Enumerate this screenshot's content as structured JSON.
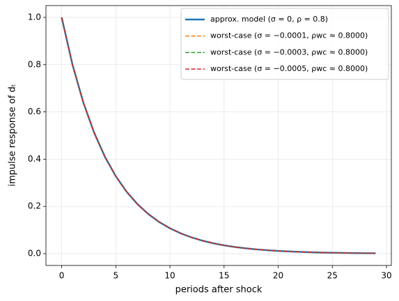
{
  "chart_data": {
    "type": "line",
    "x_label": "periods after shock",
    "y_label": "impulse response of dₜ",
    "x": [
      0,
      1,
      2,
      3,
      4,
      5,
      6,
      7,
      8,
      9,
      10,
      11,
      12,
      13,
      14,
      15,
      16,
      17,
      18,
      19,
      20,
      21,
      22,
      23,
      24,
      25,
      26,
      27,
      28,
      29
    ],
    "series": [
      {
        "name": "approx. model (σ = 0, ρ = 0.8)",
        "color": "#1f77b4",
        "linestyle": "solid",
        "values": [
          1,
          0.8,
          0.64,
          0.512,
          0.4096,
          0.3277,
          0.2621,
          0.2097,
          0.1678,
          0.1342,
          0.1074,
          0.0859,
          0.0687,
          0.055,
          0.044,
          0.0352,
          0.0281,
          0.0225,
          0.018,
          0.0144,
          0.0115,
          0.0092,
          0.0074,
          0.0059,
          0.0047,
          0.0038,
          0.003,
          0.0024,
          0.0019,
          0.0015
        ]
      },
      {
        "name": "worst-case (σ = −0.0001, ρwc ≈ 0.8000)",
        "color": "#ff7f0e",
        "linestyle": "dashed",
        "values": [
          1,
          0.8,
          0.64,
          0.512,
          0.4096,
          0.3277,
          0.2621,
          0.2097,
          0.1678,
          0.1342,
          0.1074,
          0.0859,
          0.0687,
          0.055,
          0.044,
          0.0352,
          0.0281,
          0.0225,
          0.018,
          0.0144,
          0.0115,
          0.0092,
          0.0074,
          0.0059,
          0.0047,
          0.0038,
          0.003,
          0.0024,
          0.0019,
          0.0015
        ]
      },
      {
        "name": "worst-case (σ = −0.0003, ρwc ≈ 0.8000)",
        "color": "#2ca02c",
        "linestyle": "dashed",
        "values": [
          1,
          0.8,
          0.64,
          0.512,
          0.4096,
          0.3277,
          0.2621,
          0.2097,
          0.1678,
          0.1342,
          0.1074,
          0.0859,
          0.0687,
          0.055,
          0.044,
          0.0352,
          0.0281,
          0.0225,
          0.018,
          0.0144,
          0.0115,
          0.0092,
          0.0074,
          0.0059,
          0.0047,
          0.0038,
          0.003,
          0.0024,
          0.0019,
          0.0015
        ]
      },
      {
        "name": "worst-case (σ = −0.0005, ρwc ≈ 0.8000)",
        "color": "#d62728",
        "linestyle": "dashed",
        "values": [
          1,
          0.8,
          0.64,
          0.512,
          0.4096,
          0.3277,
          0.2621,
          0.2097,
          0.1678,
          0.1342,
          0.1074,
          0.0859,
          0.0687,
          0.055,
          0.044,
          0.0352,
          0.0281,
          0.0225,
          0.018,
          0.0144,
          0.0115,
          0.0092,
          0.0074,
          0.0059,
          0.0047,
          0.0038,
          0.003,
          0.0024,
          0.0019,
          0.0015
        ]
      }
    ],
    "xlim": [
      -1.45,
      30.45
    ],
    "ylim": [
      -0.05,
      1.05
    ],
    "xticks": [
      0,
      5,
      10,
      15,
      20,
      25,
      30
    ],
    "yticks": [
      {
        "value": 0,
        "label": "0.0"
      },
      0.2,
      0.4,
      0.6,
      0.8,
      {
        "value": 1,
        "label": "1.0"
      }
    ],
    "grid": true,
    "legend": "upper right"
  }
}
